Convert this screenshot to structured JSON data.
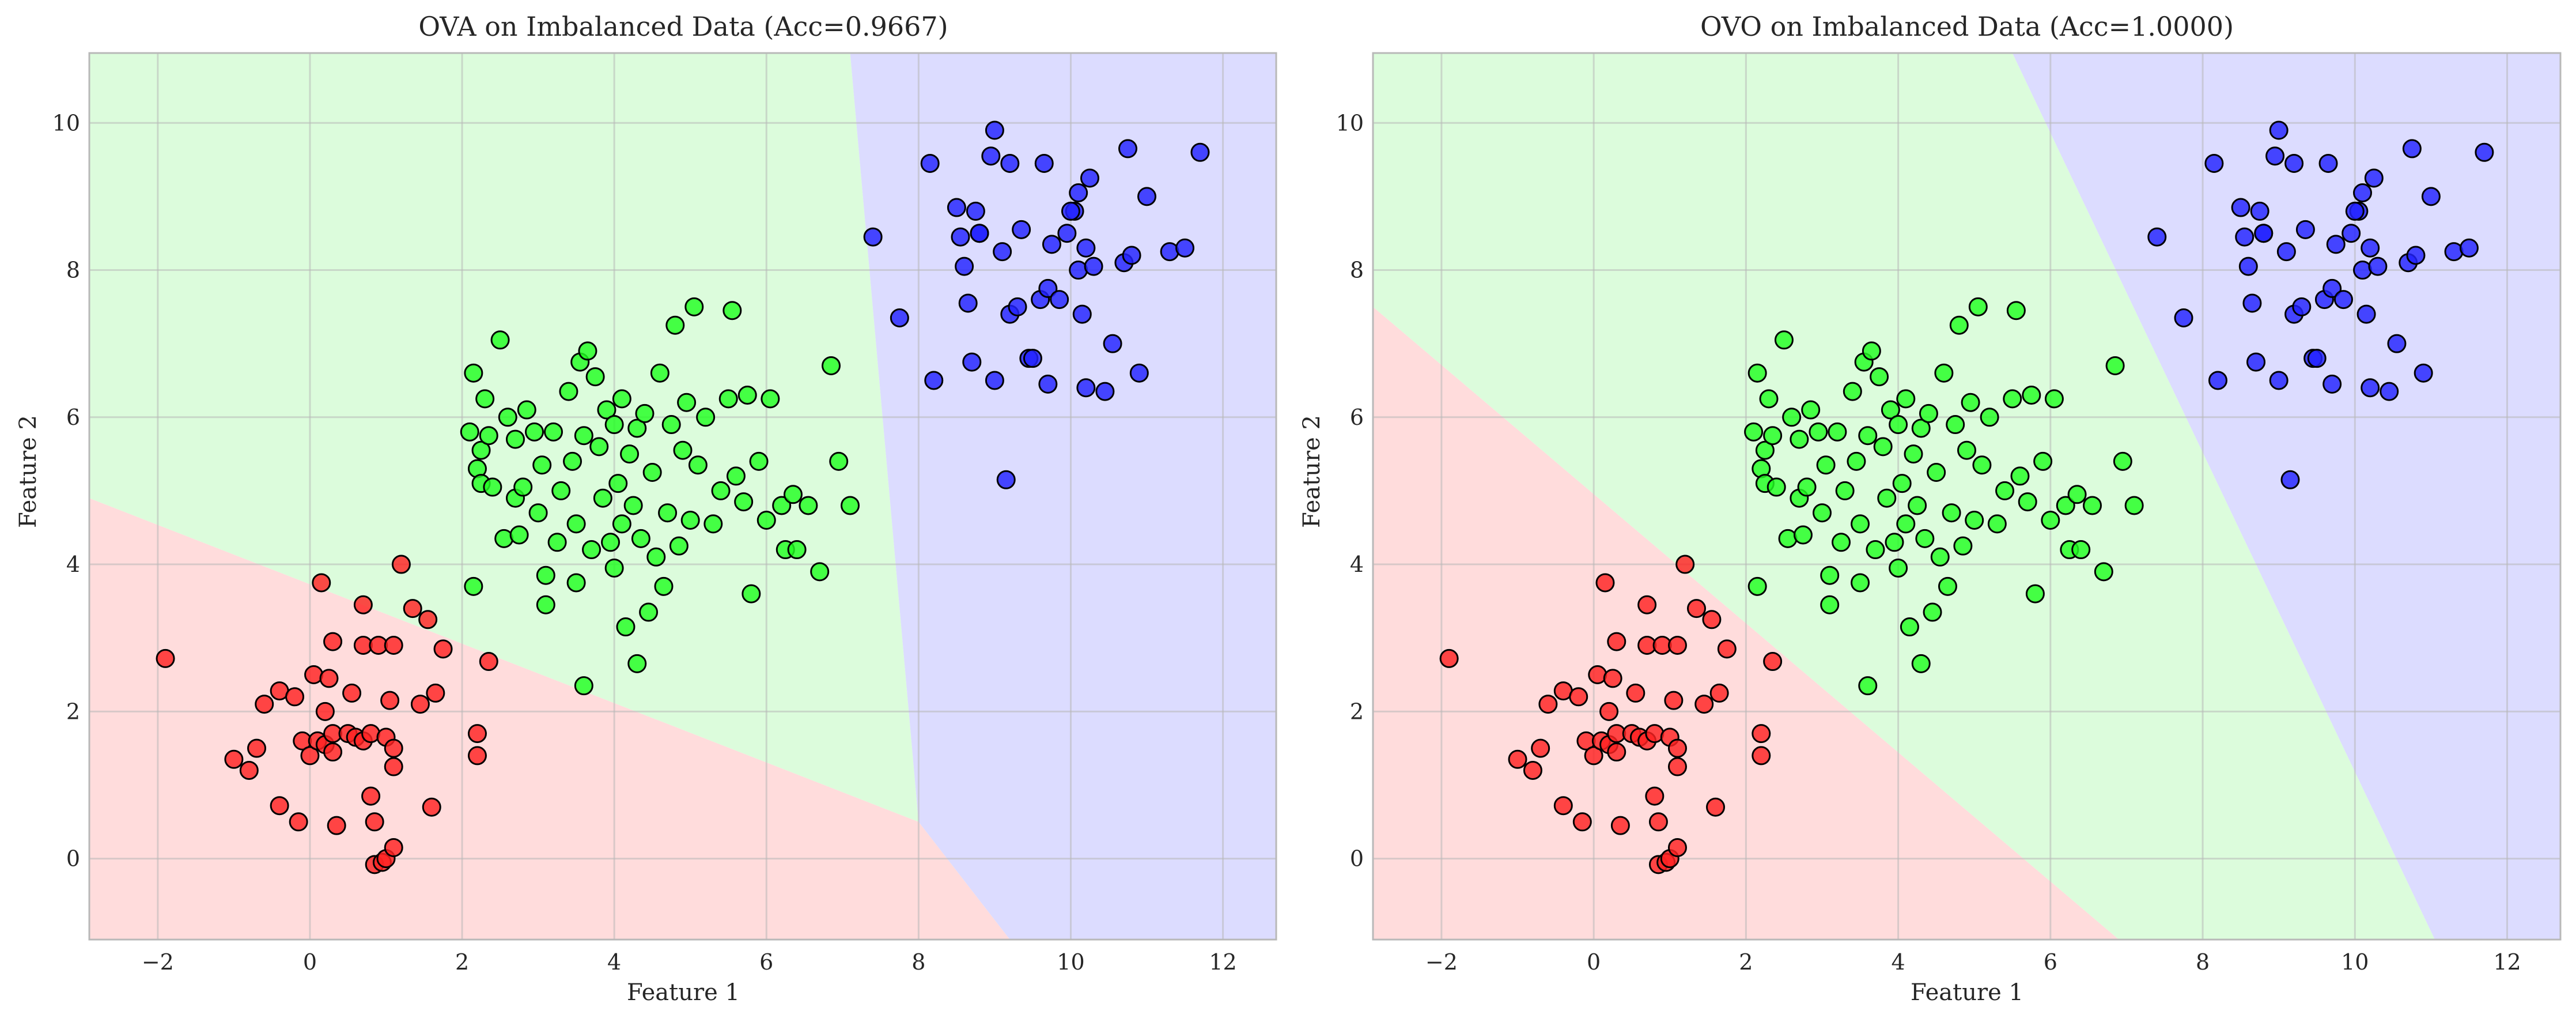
{
  "chart_data": [
    {
      "type": "scatter",
      "title": "OVA on Imbalanced Data (Acc=0.9667)",
      "xlabel": "Feature 1",
      "ylabel": "Feature 2",
      "xlim": [
        -2.9,
        12.7
      ],
      "ylim": [
        -1.1,
        10.95
      ],
      "xticks": [
        "−2",
        "0",
        "2",
        "4",
        "6",
        "8",
        "10",
        "12"
      ],
      "yticks": [
        "0",
        "2",
        "4",
        "6",
        "8",
        "10"
      ],
      "grid": true,
      "legend": "none",
      "decision_regions": [
        {
          "class": "0",
          "color": "#ffdcdc",
          "polygon": [
            [
              -2.9,
              -1.1
            ],
            [
              9.2,
              -1.1
            ],
            [
              8.0,
              0.5
            ],
            [
              -2.9,
              4.9
            ]
          ]
        },
        {
          "class": "1",
          "color": "#dcfcdc",
          "polygon": [
            [
              -2.9,
              4.9
            ],
            [
              8.0,
              0.5
            ],
            [
              7.1,
              10.95
            ],
            [
              -2.9,
              10.95
            ]
          ]
        },
        {
          "class": "2",
          "color": "#dcdcff",
          "polygon": [
            [
              7.1,
              10.95
            ],
            [
              8.0,
              0.5
            ],
            [
              9.2,
              -1.1
            ],
            [
              12.7,
              -1.1
            ],
            [
              12.7,
              10.95
            ]
          ]
        }
      ],
      "series": [
        {
          "class": "0",
          "color": "#ff2222",
          "points": [
            [
              -1.9,
              2.72
            ],
            [
              -1.0,
              1.35
            ],
            [
              -0.8,
              1.2
            ],
            [
              -0.7,
              1.5
            ],
            [
              -0.6,
              2.1
            ],
            [
              -0.4,
              2.28
            ],
            [
              -0.4,
              0.72
            ],
            [
              -0.2,
              2.2
            ],
            [
              -0.15,
              0.5
            ],
            [
              -0.1,
              1.6
            ],
            [
              0.0,
              1.4
            ],
            [
              0.05,
              2.5
            ],
            [
              0.1,
              1.6
            ],
            [
              0.15,
              3.75
            ],
            [
              0.2,
              2.0
            ],
            [
              0.2,
              1.55
            ],
            [
              0.25,
              2.45
            ],
            [
              0.3,
              1.7
            ],
            [
              0.3,
              1.45
            ],
            [
              0.3,
              2.95
            ],
            [
              0.35,
              0.45
            ],
            [
              0.5,
              1.7
            ],
            [
              0.55,
              2.25
            ],
            [
              0.6,
              1.65
            ],
            [
              0.7,
              1.6
            ],
            [
              0.7,
              2.9
            ],
            [
              0.7,
              3.45
            ],
            [
              0.8,
              0.85
            ],
            [
              0.8,
              1.7
            ],
            [
              0.9,
              2.9
            ],
            [
              0.85,
              0.5
            ],
            [
              0.85,
              -0.08
            ],
            [
              0.95,
              -0.05
            ],
            [
              1.0,
              0.0
            ],
            [
              1.0,
              1.65
            ],
            [
              1.05,
              2.15
            ],
            [
              1.1,
              0.15
            ],
            [
              1.1,
              1.5
            ],
            [
              1.1,
              1.25
            ],
            [
              1.1,
              2.9
            ],
            [
              1.2,
              4.0
            ],
            [
              1.35,
              3.4
            ],
            [
              1.45,
              2.1
            ],
            [
              1.55,
              3.25
            ],
            [
              1.6,
              0.7
            ],
            [
              1.65,
              2.25
            ],
            [
              1.75,
              2.85
            ],
            [
              2.2,
              1.7
            ],
            [
              2.2,
              1.4
            ],
            [
              2.35,
              2.68
            ]
          ]
        },
        {
          "class": "1",
          "color": "#22ff22",
          "points": [
            [
              2.1,
              5.8
            ],
            [
              2.15,
              6.6
            ],
            [
              2.2,
              5.3
            ],
            [
              2.25,
              5.55
            ],
            [
              2.25,
              5.1
            ],
            [
              2.3,
              6.25
            ],
            [
              2.35,
              5.75
            ],
            [
              2.4,
              5.05
            ],
            [
              2.5,
              7.05
            ],
            [
              2.55,
              4.35
            ],
            [
              2.6,
              6.0
            ],
            [
              2.7,
              5.7
            ],
            [
              2.7,
              4.9
            ],
            [
              2.75,
              4.4
            ],
            [
              2.8,
              5.05
            ],
            [
              2.85,
              6.1
            ],
            [
              2.95,
              5.8
            ],
            [
              3.0,
              4.7
            ],
            [
              3.05,
              5.35
            ],
            [
              3.1,
              3.85
            ],
            [
              3.1,
              3.45
            ],
            [
              3.2,
              5.8
            ],
            [
              3.25,
              4.3
            ],
            [
              3.3,
              5.0
            ],
            [
              3.4,
              6.35
            ],
            [
              3.45,
              5.4
            ],
            [
              3.5,
              4.55
            ],
            [
              3.55,
              6.75
            ],
            [
              3.6,
              5.75
            ],
            [
              3.65,
              6.9
            ],
            [
              3.7,
              4.2
            ],
            [
              3.75,
              6.55
            ],
            [
              3.8,
              5.6
            ],
            [
              3.85,
              4.9
            ],
            [
              3.9,
              6.1
            ],
            [
              3.95,
              4.3
            ],
            [
              4.0,
              5.9
            ],
            [
              4.0,
              3.95
            ],
            [
              4.05,
              5.1
            ],
            [
              4.1,
              6.25
            ],
            [
              4.1,
              4.55
            ],
            [
              4.15,
              3.15
            ],
            [
              4.2,
              5.5
            ],
            [
              4.25,
              4.8
            ],
            [
              4.3,
              2.65
            ],
            [
              4.3,
              5.85
            ],
            [
              4.35,
              4.35
            ],
            [
              4.4,
              6.05
            ],
            [
              4.45,
              3.35
            ],
            [
              4.5,
              5.25
            ],
            [
              4.55,
              4.1
            ],
            [
              4.6,
              6.6
            ],
            [
              4.65,
              3.7
            ],
            [
              4.7,
              4.7
            ],
            [
              4.75,
              5.9
            ],
            [
              4.8,
              7.25
            ],
            [
              4.85,
              4.25
            ],
            [
              4.9,
              5.55
            ],
            [
              4.95,
              6.2
            ],
            [
              5.0,
              4.6
            ],
            [
              5.05,
              7.5
            ],
            [
              5.1,
              5.35
            ],
            [
              5.2,
              6.0
            ],
            [
              5.3,
              4.55
            ],
            [
              5.4,
              5.0
            ],
            [
              5.5,
              6.25
            ],
            [
              5.55,
              7.45
            ],
            [
              5.6,
              5.2
            ],
            [
              5.7,
              4.85
            ],
            [
              5.75,
              6.3
            ],
            [
              5.8,
              3.6
            ],
            [
              5.9,
              5.4
            ],
            [
              6.0,
              4.6
            ],
            [
              6.05,
              6.25
            ],
            [
              6.2,
              4.8
            ],
            [
              6.25,
              4.2
            ],
            [
              6.35,
              4.95
            ],
            [
              6.4,
              4.2
            ],
            [
              6.55,
              4.8
            ],
            [
              6.7,
              3.9
            ],
            [
              6.85,
              6.7
            ],
            [
              6.95,
              5.4
            ],
            [
              7.1,
              4.8
            ],
            [
              2.15,
              3.7
            ],
            [
              3.6,
              2.35
            ],
            [
              3.5,
              3.75
            ]
          ]
        },
        {
          "class": "2",
          "color": "#2222ff",
          "points": [
            [
              7.4,
              8.45
            ],
            [
              7.75,
              7.35
            ],
            [
              8.15,
              9.45
            ],
            [
              8.2,
              6.5
            ],
            [
              8.5,
              8.85
            ],
            [
              8.55,
              8.45
            ],
            [
              8.6,
              8.05
            ],
            [
              8.65,
              7.55
            ],
            [
              8.7,
              6.75
            ],
            [
              8.75,
              8.8
            ],
            [
              8.8,
              8.5
            ],
            [
              8.95,
              9.55
            ],
            [
              9.0,
              6.5
            ],
            [
              9.0,
              9.9
            ],
            [
              9.1,
              8.25
            ],
            [
              9.15,
              5.15
            ],
            [
              9.2,
              9.45
            ],
            [
              9.2,
              7.4
            ],
            [
              9.3,
              7.5
            ],
            [
              9.35,
              8.55
            ],
            [
              9.45,
              6.8
            ],
            [
              9.6,
              7.6
            ],
            [
              9.65,
              9.45
            ],
            [
              9.7,
              7.75
            ],
            [
              9.7,
              6.45
            ],
            [
              9.75,
              8.35
            ],
            [
              9.85,
              7.6
            ],
            [
              9.95,
              8.5
            ],
            [
              10.05,
              8.8
            ],
            [
              10.1,
              9.05
            ],
            [
              10.1,
              8.0
            ],
            [
              10.15,
              7.4
            ],
            [
              10.2,
              8.3
            ],
            [
              10.25,
              9.25
            ],
            [
              10.3,
              8.05
            ],
            [
              10.45,
              6.35
            ],
            [
              10.55,
              7.0
            ],
            [
              10.7,
              8.1
            ],
            [
              10.75,
              9.65
            ],
            [
              10.8,
              8.2
            ],
            [
              10.9,
              6.6
            ],
            [
              11.0,
              9.0
            ],
            [
              11.3,
              8.25
            ],
            [
              11.5,
              8.3
            ],
            [
              11.7,
              9.6
            ],
            [
              10.2,
              6.4
            ],
            [
              9.5,
              6.8
            ],
            [
              8.8,
              8.5
            ],
            [
              10.0,
              8.8
            ]
          ]
        }
      ]
    },
    {
      "type": "scatter",
      "title": "OVO on Imbalanced Data (Acc=1.0000)",
      "xlabel": "Feature 1",
      "ylabel": "Feature 2",
      "xlim": [
        -2.9,
        12.7
      ],
      "ylim": [
        -1.1,
        10.95
      ],
      "xticks": [
        "−2",
        "0",
        "2",
        "4",
        "6",
        "8",
        "10",
        "12"
      ],
      "yticks": [
        "0",
        "2",
        "4",
        "6",
        "8",
        "10"
      ],
      "grid": true,
      "legend": "none",
      "decision_regions": [
        {
          "class": "0",
          "color": "#ffdcdc",
          "polygon": [
            [
              -2.9,
              -1.1
            ],
            [
              6.9,
              -1.1
            ],
            [
              -2.9,
              7.5
            ]
          ]
        },
        {
          "class": "1",
          "color": "#dcfcdc",
          "polygon": [
            [
              -2.9,
              7.5
            ],
            [
              6.9,
              -1.1
            ],
            [
              11.05,
              -1.1
            ],
            [
              5.5,
              10.95
            ],
            [
              -2.9,
              10.95
            ]
          ]
        },
        {
          "class": "2",
          "color": "#dcdcff",
          "polygon": [
            [
              5.5,
              10.95
            ],
            [
              11.05,
              -1.1
            ],
            [
              12.7,
              -1.1
            ],
            [
              12.7,
              10.95
            ]
          ]
        }
      ],
      "series": "same points as OVA panel"
    }
  ]
}
